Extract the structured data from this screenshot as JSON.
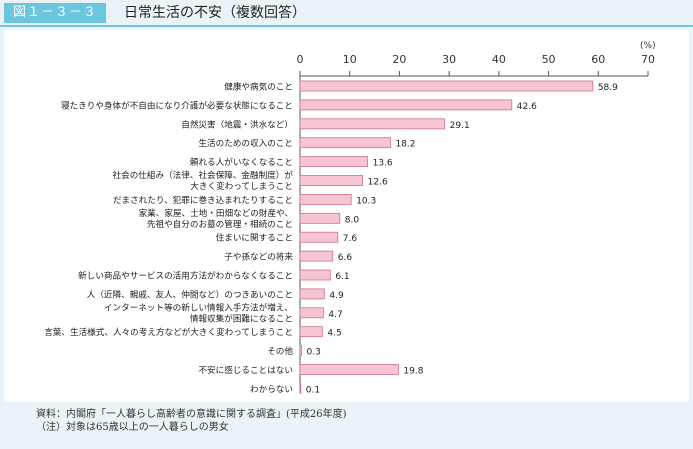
{
  "figure": {
    "label": "図１－３－３",
    "title": "日常生活の不安（複数回答）"
  },
  "notes": {
    "source": "資料：内閣府「一人暮らし高齢者の意識に関する調査」(平成26年度)",
    "note": "（注）対象は65歳以上の一人暮らしの男女"
  },
  "chart_data": {
    "type": "bar",
    "orientation": "horizontal",
    "unit_label": "(%)",
    "xlim": [
      0,
      70
    ],
    "ticks": [
      0,
      10,
      20,
      30,
      40,
      50,
      60,
      70
    ],
    "grid": false,
    "bar_color": "#f7c4d1",
    "bar_stroke": "#c9748c",
    "categories": [
      [
        "健康や病気のこと"
      ],
      [
        "寝たきりや身体が不自由になり介護が必要な状態になること"
      ],
      [
        "自然災害（地震・洪水など）"
      ],
      [
        "生活のための収入のこと"
      ],
      [
        "頼れる人がいなくなること"
      ],
      [
        "社会の仕組み（法律、社会保障、金融制度）が",
        "大きく変わってしまうこと"
      ],
      [
        "だまされたり、犯罪に巻き込まれたりすること"
      ],
      [
        "家業、家屋、土地・田畑などの財産や、",
        "先祖や自分のお墓の管理・相続のこと"
      ],
      [
        "住まいに関すること"
      ],
      [
        "子や孫などの将来"
      ],
      [
        "新しい商品やサービスの活用方法がわからなくなること"
      ],
      [
        "人（近隣、親戚、友人、仲間など）のつきあいのこと"
      ],
      [
        "インターネット等の新しい情報入手方法が増え、",
        "情報収集が困難になること"
      ],
      [
        "言葉、生活様式、人々の考え方などが大きく変わってしまうこと"
      ],
      [
        "その他"
      ],
      [
        "不安に感じることはない"
      ],
      [
        "わからない"
      ]
    ],
    "values": [
      58.9,
      42.6,
      29.1,
      18.2,
      13.6,
      12.6,
      10.3,
      8.0,
      7.6,
      6.6,
      6.1,
      4.9,
      4.7,
      4.5,
      0.3,
      19.8,
      0.1
    ],
    "value_labels": [
      "58.9",
      "42.6",
      "29.1",
      "18.2",
      "13.6",
      "12.6",
      "10.3",
      "8.0",
      "7.6",
      "6.6",
      "6.1",
      "4.9",
      "4.7",
      "4.5",
      "0.3",
      "19.8",
      "0.1"
    ]
  }
}
